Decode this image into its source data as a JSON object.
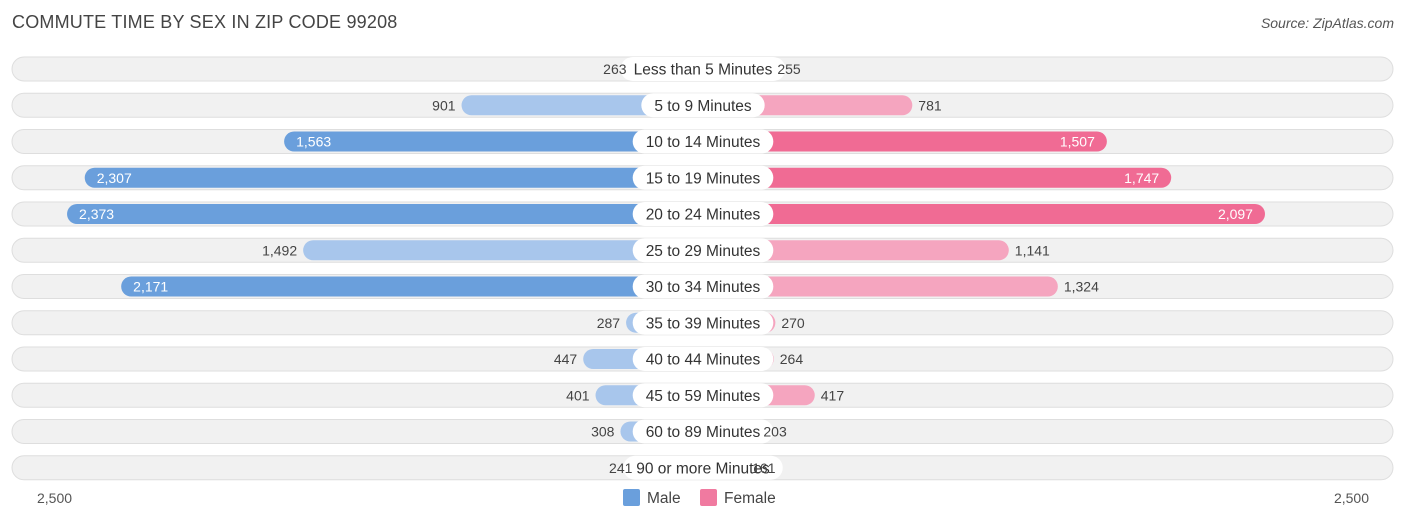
{
  "title": "COMMUTE TIME BY SEX IN ZIP CODE 99208",
  "source": "Source: ZipAtlas.com",
  "colors": {
    "male_strong": "#6a9fdc",
    "male_light": "#a8c6ec",
    "female_strong": "#f06b94",
    "female_light": "#f5a5bf",
    "male_legend": "#6a9fdc",
    "female_legend": "#f07aa0"
  },
  "chart_data": {
    "type": "bar",
    "orientation": "horizontal-diverging",
    "title": "COMMUTE TIME BY SEX IN ZIP CODE 99208",
    "categories": [
      "Less than 5 Minutes",
      "5 to 9 Minutes",
      "10 to 14 Minutes",
      "15 to 19 Minutes",
      "20 to 24 Minutes",
      "25 to 29 Minutes",
      "30 to 34 Minutes",
      "35 to 39 Minutes",
      "40 to 44 Minutes",
      "45 to 59 Minutes",
      "60 to 89 Minutes",
      "90 or more Minutes"
    ],
    "series": [
      {
        "name": "Male",
        "values": [
          263,
          901,
          1563,
          2307,
          2373,
          1492,
          2171,
          287,
          447,
          401,
          308,
          241
        ],
        "labels": [
          "263",
          "901",
          "1,563",
          "2,307",
          "2,373",
          "1,492",
          "2,171",
          "287",
          "447",
          "401",
          "308",
          "241"
        ]
      },
      {
        "name": "Female",
        "values": [
          255,
          781,
          1507,
          1747,
          2097,
          1141,
          1324,
          270,
          264,
          417,
          203,
          161
        ],
        "labels": [
          "255",
          "781",
          "1,507",
          "1,747",
          "2,097",
          "1,141",
          "1,324",
          "270",
          "264",
          "417",
          "203",
          "161"
        ]
      }
    ],
    "xlim": [
      -2500,
      2500
    ],
    "axis_labels": {
      "left": "2,500",
      "right": "2,500"
    },
    "legend": {
      "position": "bottom-center",
      "items": [
        "Male",
        "Female"
      ]
    },
    "grid": false
  }
}
